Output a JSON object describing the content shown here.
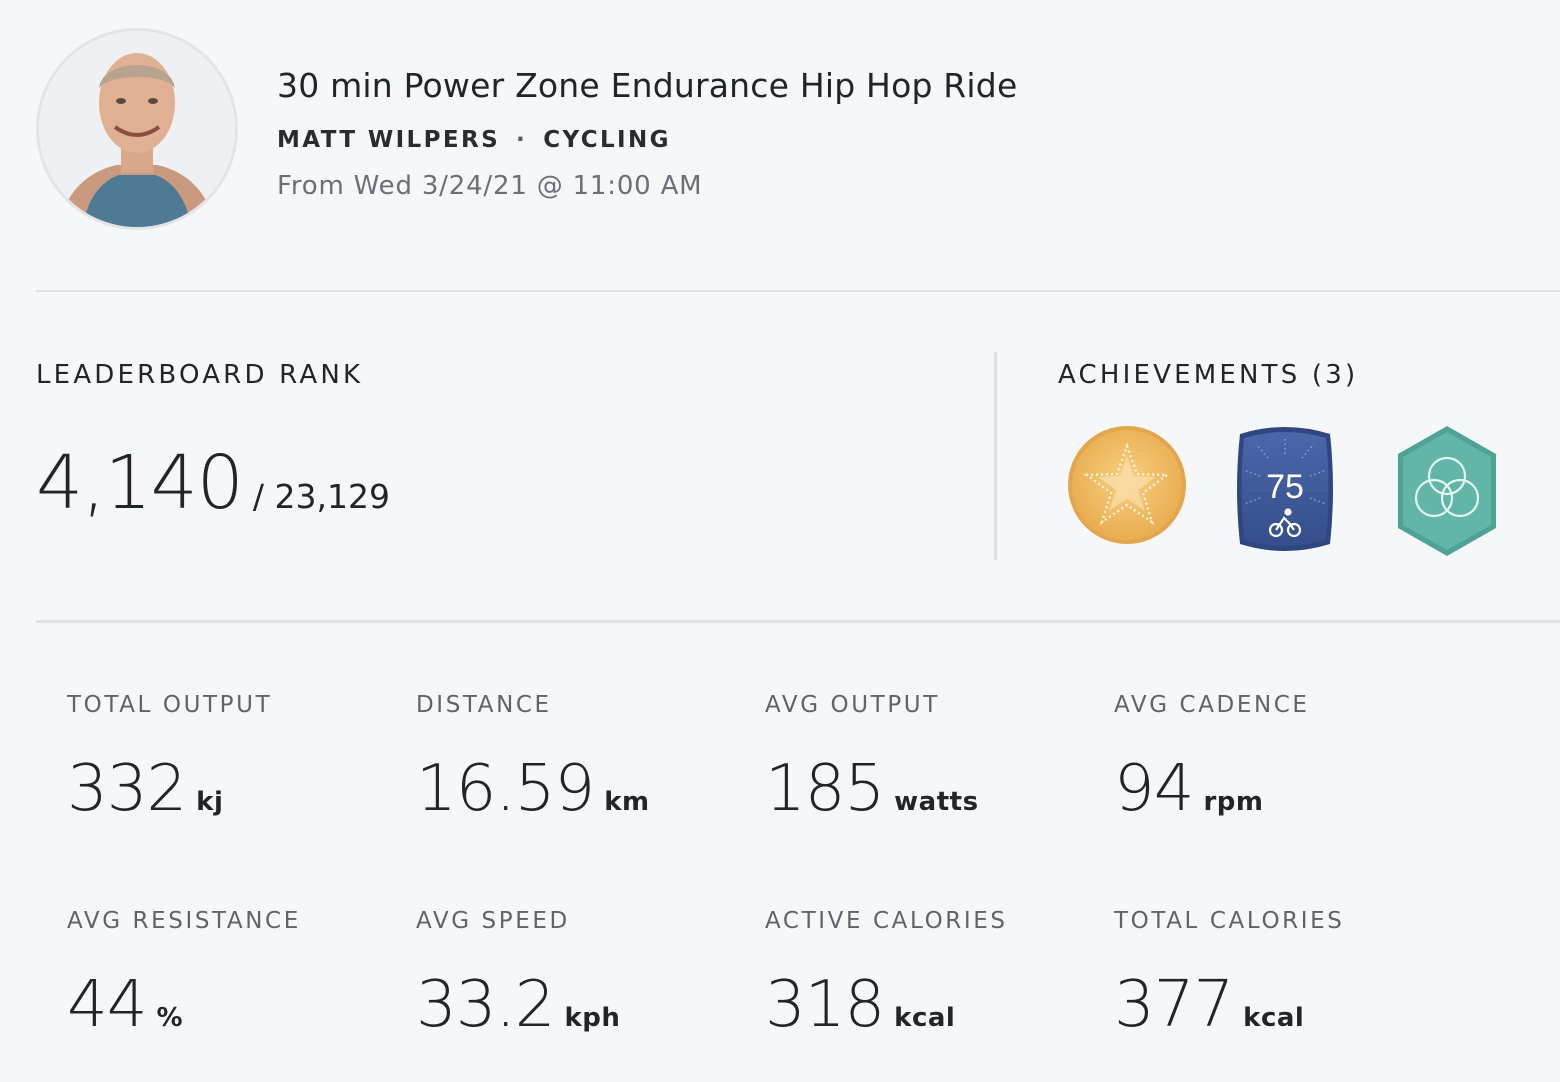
{
  "header": {
    "title": "30 min Power Zone Endurance Hip Hop Ride",
    "instructor": "MATT WILPERS",
    "separator": "·",
    "discipline": "CYCLING",
    "from": "From Wed 3/24/21 @ 11:00 AM"
  },
  "leaderboard": {
    "label": "LEADERBOARD RANK",
    "rank": "4,140",
    "total": "/ 23,129"
  },
  "achievements": {
    "label": "ACHIEVEMENTS (3)",
    "badges": [
      {
        "icon": "gold-star-badge-icon",
        "color": "#f0c06a"
      },
      {
        "icon": "century-ride-badge-icon",
        "text": "75",
        "color": "#3f5a9a"
      },
      {
        "icon": "teal-hexagon-badge-icon",
        "color": "#5eb3a6"
      }
    ]
  },
  "stats": [
    {
      "label": "TOTAL OUTPUT",
      "value": "332",
      "unit": "kj"
    },
    {
      "label": "DISTANCE",
      "value": "16.59",
      "unit": "km"
    },
    {
      "label": "AVG OUTPUT",
      "value": "185",
      "unit": "watts"
    },
    {
      "label": "AVG CADENCE",
      "value": "94",
      "unit": "rpm"
    },
    {
      "label": "AVG RESISTANCE",
      "value": "44",
      "unit": "%"
    },
    {
      "label": "AVG SPEED",
      "value": "33.2",
      "unit": "kph"
    },
    {
      "label": "ACTIVE CALORIES",
      "value": "318",
      "unit": "kcal"
    },
    {
      "label": "TOTAL CALORIES",
      "value": "377",
      "unit": "kcal"
    }
  ]
}
